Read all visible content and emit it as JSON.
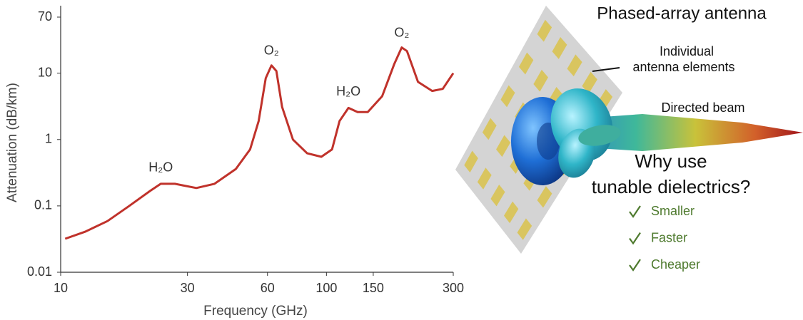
{
  "chart_data": {
    "type": "line",
    "x_label": "Frequency (GHz)",
    "y_label": "Attenuation (dB/km)",
    "log_x": true,
    "log_y": true,
    "xlim": [
      10,
      300
    ],
    "ylim": [
      0.01,
      70
    ],
    "xticks": [
      10,
      30,
      60,
      100,
      150,
      300
    ],
    "yticks": [
      0.01,
      0.1,
      1,
      10,
      70
    ],
    "x": [
      10.4,
      12.4,
      15.0,
      18.0,
      21.7,
      23.8,
      26.9,
      32.4,
      37.9,
      45.6,
      51.6,
      55.6,
      59.1,
      62.1,
      64.8,
      68.1,
      74.8,
      84.6,
      95.7,
      105,
      112,
      121,
      131,
      143,
      162,
      180,
      192,
      201,
      221,
      250,
      274,
      300
    ],
    "series": [
      {
        "color": "#c0322b",
        "values": [
          0.032,
          0.041,
          0.059,
          0.098,
          0.168,
          0.215,
          0.215,
          0.186,
          0.215,
          0.36,
          0.71,
          1.9,
          8.4,
          13.1,
          10.8,
          3.1,
          1.0,
          0.62,
          0.55,
          0.71,
          1.9,
          3.0,
          2.6,
          2.6,
          4.5,
          13.8,
          24.4,
          21.5,
          7.4,
          5.4,
          5.8,
          10
        ]
      }
    ],
    "annotations": [
      "H₂O",
      "O₂",
      "H₂O",
      "O₂"
    ]
  },
  "illustration": {
    "title": "Phased-array antenna",
    "element_label": [
      "Individual",
      "antenna elements"
    ],
    "beam_label": "Directed beam",
    "question": [
      "Why use",
      "tunable dielectrics?"
    ],
    "benefits": [
      "Smaller",
      "Faster",
      "Cheaper"
    ]
  }
}
